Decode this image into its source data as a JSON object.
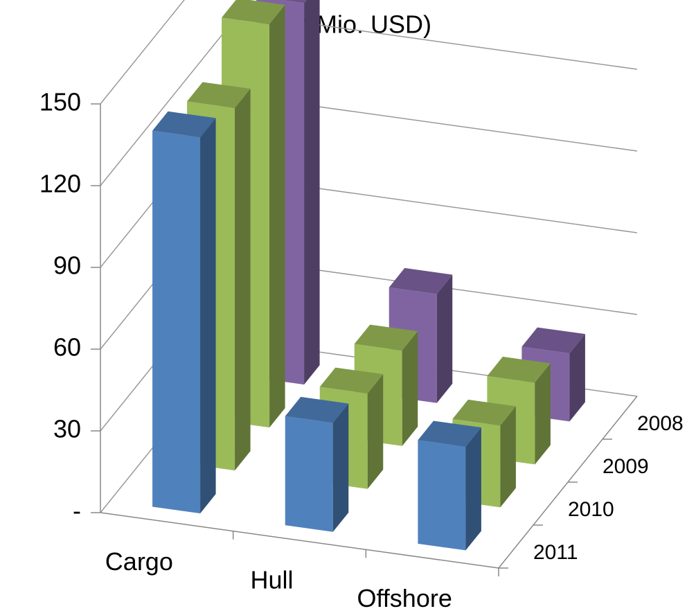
{
  "chart_data": {
    "type": "bar3d",
    "title": "(in Mio. USD)",
    "categories": [
      "Cargo",
      "Hull",
      "Offshore"
    ],
    "series": [
      {
        "name": "2011",
        "color": "#4f81bd",
        "values": [
          138,
          40,
          38
        ]
      },
      {
        "name": "2010",
        "color": "#9bbb59",
        "values": [
          133,
          35,
          30
        ]
      },
      {
        "name": "2009",
        "color": "#9bbb59",
        "values": [
          148,
          35,
          30
        ]
      },
      {
        "name": "2008",
        "color": "#8064a2",
        "values": [
          140,
          40,
          25
        ]
      }
    ],
    "ylim": [
      0,
      150
    ],
    "yticks": [
      {
        "value": 0,
        "label": "-"
      },
      30,
      60,
      90,
      120,
      150
    ],
    "grid": true
  }
}
